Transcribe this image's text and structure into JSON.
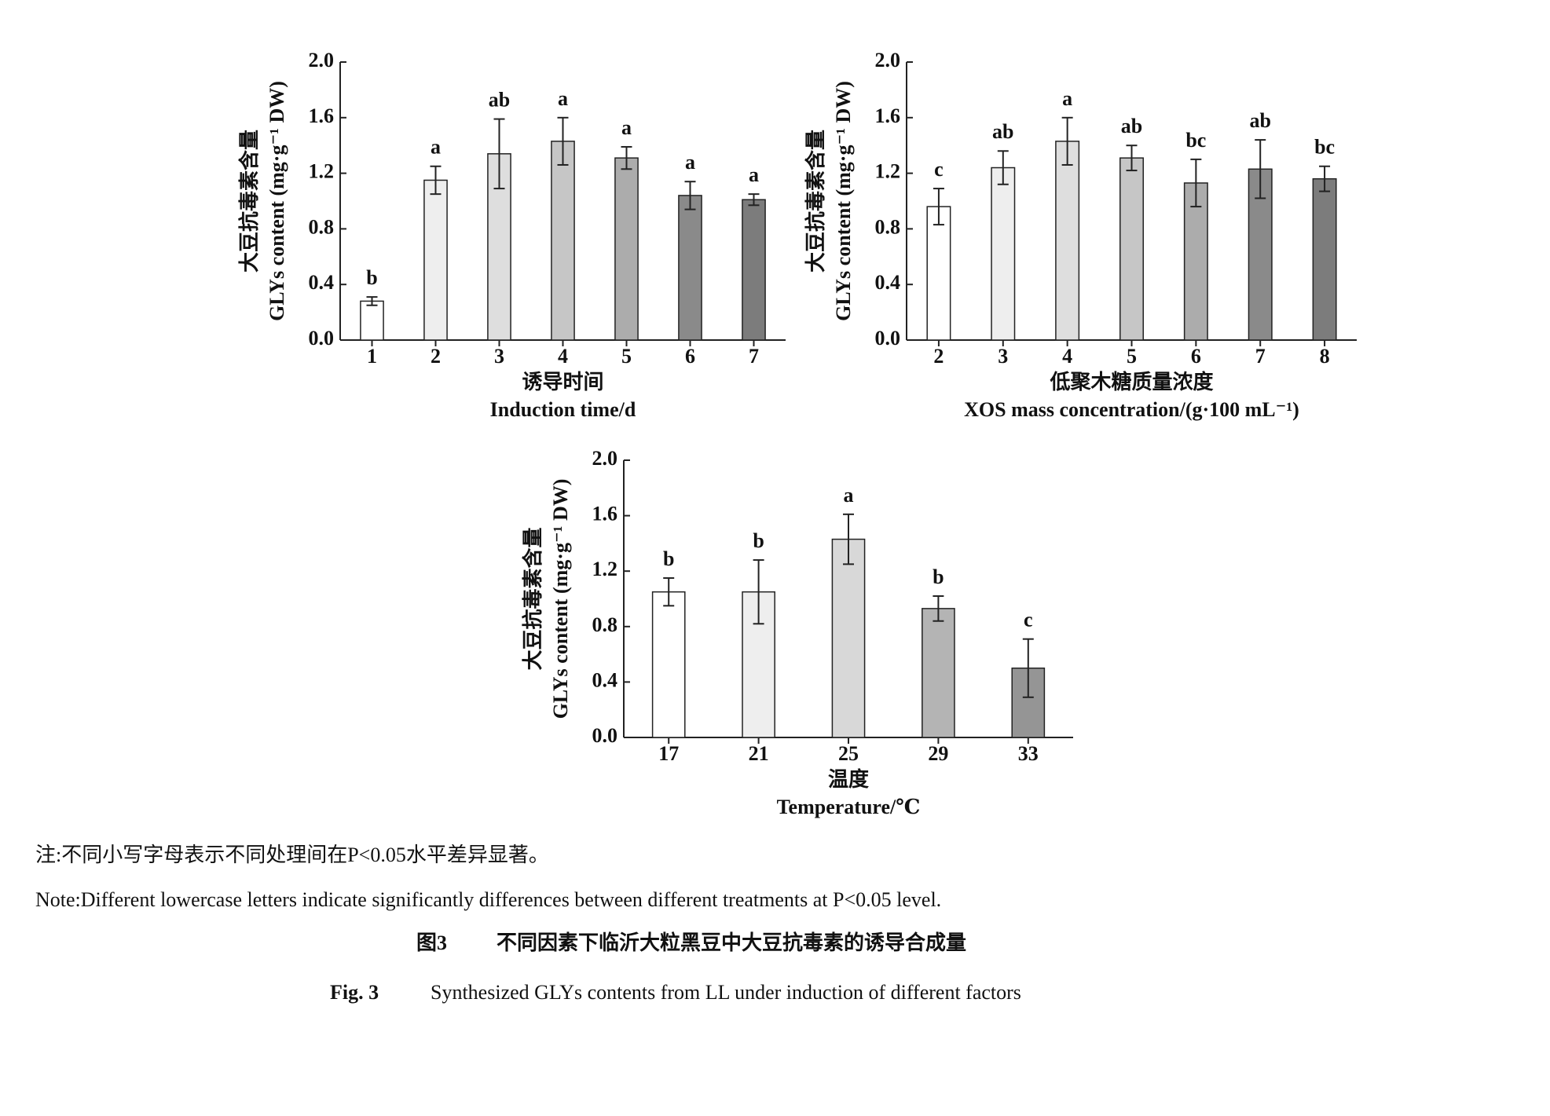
{
  "chart_data": [
    {
      "type": "bar",
      "y_label_zh": "大豆抗毒素含量",
      "y_label_en": "GLYs content (mg·g⁻¹ DW)",
      "x_label_zh": "诱导时间",
      "x_label_en": "Induction time/d",
      "categories": [
        "1",
        "2",
        "3",
        "4",
        "5",
        "6",
        "7"
      ],
      "values": [
        0.28,
        1.15,
        1.34,
        1.43,
        1.31,
        1.04,
        1.01
      ],
      "errors": [
        0.03,
        0.1,
        0.25,
        0.17,
        0.08,
        0.1,
        0.04
      ],
      "letters": [
        "b",
        "a",
        "ab",
        "a",
        "a",
        "a",
        "a"
      ],
      "colors": [
        "#ffffff",
        "#eeeeee",
        "#dedede",
        "#c6c6c6",
        "#acacac",
        "#8a8a8a",
        "#7c7c7c"
      ],
      "ylim": [
        0,
        2
      ],
      "yticks": [
        {
          "value": 0,
          "label": "0.0"
        },
        0.4,
        0.8,
        1.2,
        1.6,
        {
          "value": 2,
          "label": "2.0"
        }
      ]
    },
    {
      "type": "bar",
      "y_label_zh": "大豆抗毒素含量",
      "y_label_en": "GLYs content (mg·g⁻¹ DW)",
      "x_label_zh": "低聚木糖质量浓度",
      "x_label_en": "XOS mass concentration/(g·100 mL⁻¹)",
      "categories": [
        "2",
        "3",
        "4",
        "5",
        "6",
        "7",
        "8"
      ],
      "values": [
        0.96,
        1.24,
        1.43,
        1.31,
        1.13,
        1.23,
        1.16
      ],
      "errors": [
        0.13,
        0.12,
        0.17,
        0.09,
        0.17,
        0.21,
        0.09
      ],
      "letters": [
        "c",
        "ab",
        "a",
        "ab",
        "bc",
        "ab",
        "bc"
      ],
      "colors": [
        "#ffffff",
        "#eeeeee",
        "#dedede",
        "#c6c6c6",
        "#acacac",
        "#8a8a8a",
        "#7c7c7c"
      ],
      "ylim": [
        0,
        2
      ],
      "yticks": [
        {
          "value": 0,
          "label": "0.0"
        },
        0.4,
        0.8,
        1.2,
        1.6,
        {
          "value": 2,
          "label": "2.0"
        }
      ]
    },
    {
      "type": "bar",
      "y_label_zh": "大豆抗毒素含量",
      "y_label_en": "GLYs content (mg·g⁻¹ DW)",
      "x_label_zh": "温度",
      "x_label_en": "Temperature/℃",
      "categories": [
        "17",
        "21",
        "25",
        "29",
        "33"
      ],
      "values": [
        1.05,
        1.05,
        1.43,
        0.93,
        0.5
      ],
      "errors": [
        0.1,
        0.23,
        0.18,
        0.09,
        0.21
      ],
      "letters": [
        "b",
        "b",
        "a",
        "b",
        "c"
      ],
      "colors": [
        "#ffffff",
        "#eeeeee",
        "#d8d8d8",
        "#b4b4b4",
        "#959595"
      ],
      "ylim": [
        0,
        2
      ],
      "yticks": [
        {
          "value": 0,
          "label": "0.0"
        },
        0.4,
        0.8,
        1.2,
        1.6,
        {
          "value": 2,
          "label": "2.0"
        }
      ]
    }
  ],
  "note_zh": "注:不同小写字母表示不同处理间在P<0.05水平差异显著。",
  "note_en": "Note:Different lowercase letters indicate significantly differences between different treatments at P<0.05 level.",
  "caption_zh_label": "图3",
  "caption_zh": "不同因素下临沂大粒黑豆中大豆抗毒素的诱导合成量",
  "caption_en_label": "Fig. 3",
  "caption_en": "Synthesized GLYs contents from LL under induction of different factors"
}
